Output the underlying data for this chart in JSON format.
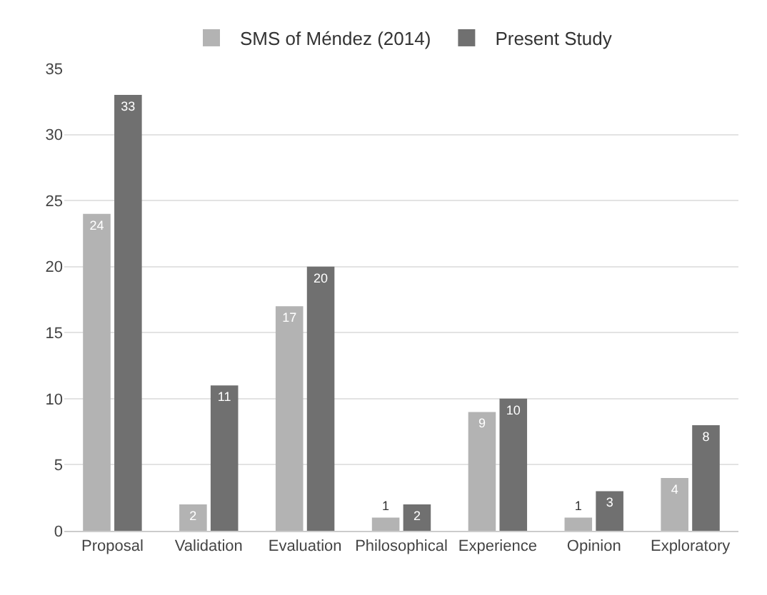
{
  "chart_data": {
    "type": "bar",
    "categories": [
      "Proposal",
      "Validation",
      "Evaluation",
      "Philosophical",
      "Experience",
      "Opinion",
      "Exploratory"
    ],
    "series": [
      {
        "name": "SMS of Méndez (2014)",
        "color": "#b3b3b3",
        "values": [
          24,
          2,
          17,
          1,
          9,
          1,
          4
        ]
      },
      {
        "name": "Present Study",
        "color": "#707070",
        "values": [
          33,
          11,
          20,
          2,
          10,
          3,
          8
        ]
      }
    ],
    "ylim": [
      0,
      35
    ],
    "yticks": [
      0,
      5,
      10,
      15,
      20,
      25,
      30,
      35
    ],
    "grid": "y",
    "legend": "top",
    "data_labels": true
  }
}
